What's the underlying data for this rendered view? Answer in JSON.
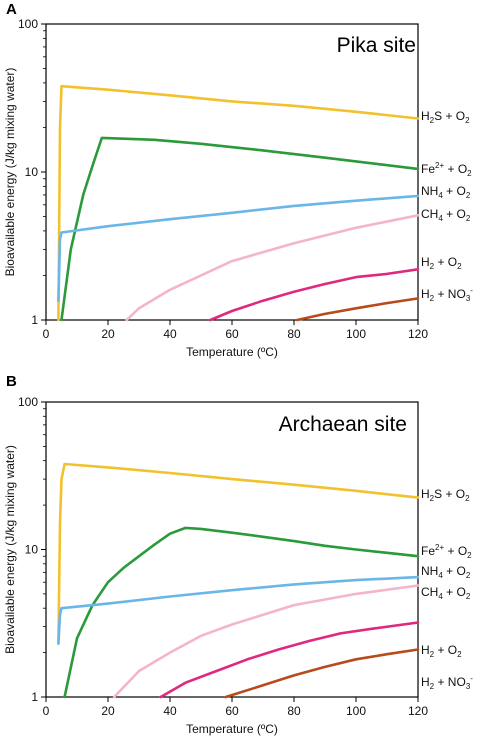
{
  "chart_data": [
    {
      "type": "line",
      "panel_label": "A",
      "title": "Pika site",
      "xlabel": "Temperature (ºC)",
      "ylabel": "Bioavailable energy (J/kg mixing water)",
      "xlim": [
        0,
        120
      ],
      "ylim": [
        1,
        100
      ],
      "yscale": "log",
      "x_ticks": [
        "0",
        "20",
        "40",
        "60",
        "80",
        "100",
        "120"
      ],
      "y_ticks": [
        "1",
        "10",
        "100"
      ],
      "grid": false,
      "series": [
        {
          "key": "h2s",
          "label_parts": [
            [
              "H"
            ],
            [
              "2",
              "sub"
            ],
            [
              "S + O"
            ],
            [
              "2",
              "sub"
            ]
          ],
          "color": "#f2c12e",
          "x": [
            4,
            4.5,
            5,
            20,
            40,
            60,
            80,
            100,
            120
          ],
          "y": [
            1,
            20,
            38,
            36,
            33,
            30,
            28,
            25.5,
            23
          ]
        },
        {
          "key": "fe",
          "label_parts": [
            [
              "Fe"
            ],
            [
              "2+",
              "sup"
            ],
            [
              " + O"
            ],
            [
              "2",
              "sub"
            ]
          ],
          "color": "#2a9a3a",
          "x": [
            5,
            8,
            12,
            15,
            18,
            25,
            35,
            50,
            70,
            90,
            120
          ],
          "y": [
            1,
            3,
            7,
            11,
            17,
            16.8,
            16.5,
            15.5,
            14,
            12.5,
            10.5
          ]
        },
        {
          "key": "nh4",
          "label_parts": [
            [
              "NH"
            ],
            [
              "4",
              "sub"
            ],
            [
              " + O"
            ],
            [
              "2",
              "sub"
            ]
          ],
          "color": "#6bb6e8",
          "x": [
            4,
            4.5,
            5,
            20,
            40,
            60,
            80,
            100,
            120
          ],
          "y": [
            1.35,
            3.5,
            3.9,
            4.3,
            4.8,
            5.3,
            5.9,
            6.4,
            6.9
          ]
        },
        {
          "key": "ch4",
          "label_parts": [
            [
              "CH"
            ],
            [
              "4",
              "sub"
            ],
            [
              " + O"
            ],
            [
              "2",
              "sub"
            ]
          ],
          "color": "#f4b5cb",
          "x": [
            26,
            30,
            40,
            50,
            60,
            80,
            100,
            120
          ],
          "y": [
            1,
            1.2,
            1.6,
            2.0,
            2.5,
            3.3,
            4.2,
            5.1
          ]
        },
        {
          "key": "h2o2",
          "label_parts": [
            [
              "H"
            ],
            [
              "2",
              "sub"
            ],
            [
              " + O"
            ],
            [
              "2",
              "sub"
            ]
          ],
          "color": "#e0297e",
          "x": [
            53,
            60,
            70,
            80,
            90,
            100,
            110,
            120
          ],
          "y": [
            1,
            1.15,
            1.35,
            1.55,
            1.75,
            1.95,
            2.05,
            2.2
          ]
        },
        {
          "key": "h2no3",
          "label_parts": [
            [
              "H"
            ],
            [
              "2",
              "sub"
            ],
            [
              " + NO"
            ],
            [
              "3",
              "sub"
            ],
            [
              "-",
              "sup"
            ]
          ],
          "color": "#b84a1c",
          "x": [
            81,
            90,
            100,
            110,
            120
          ],
          "y": [
            1,
            1.1,
            1.2,
            1.3,
            1.4
          ]
        }
      ]
    },
    {
      "type": "line",
      "panel_label": "B",
      "title": "Archaean site",
      "xlabel": "Temperature (ºC)",
      "ylabel": "Bioavailable energy (J/kg mixing water)",
      "xlim": [
        0,
        120
      ],
      "ylim": [
        1,
        100
      ],
      "yscale": "log",
      "x_ticks": [
        "0",
        "20",
        "40",
        "60",
        "80",
        "100",
        "120"
      ],
      "y_ticks": [
        "1",
        "10",
        "100"
      ],
      "grid": false,
      "series": [
        {
          "key": "h2s",
          "label_parts": [
            [
              "H"
            ],
            [
              "2",
              "sub"
            ],
            [
              "S + O"
            ],
            [
              "2",
              "sub"
            ]
          ],
          "color": "#f2c12e",
          "x": [
            4,
            4.5,
            5,
            6,
            20,
            40,
            60,
            80,
            100,
            120
          ],
          "y": [
            2.3,
            15,
            30,
            38,
            36,
            33,
            30,
            27.5,
            25,
            22.5
          ]
        },
        {
          "key": "fe",
          "label_parts": [
            [
              "Fe"
            ],
            [
              "2+",
              "sup"
            ],
            [
              " + O"
            ],
            [
              "2",
              "sub"
            ]
          ],
          "color": "#2a9a3a",
          "x": [
            6,
            10,
            15,
            20,
            25,
            30,
            35,
            40,
            45,
            50,
            60,
            70,
            80,
            90,
            100,
            110,
            120
          ],
          "y": [
            1,
            2.5,
            4.2,
            6,
            7.5,
            9,
            10.8,
            12.8,
            14,
            13.8,
            13,
            12.2,
            11.4,
            10.6,
            10,
            9.5,
            9
          ]
        },
        {
          "key": "nh4",
          "label_parts": [
            [
              "NH"
            ],
            [
              "4",
              "sub"
            ],
            [
              " + O"
            ],
            [
              "2",
              "sub"
            ]
          ],
          "color": "#6bb6e8",
          "x": [
            4,
            4.5,
            5,
            20,
            40,
            60,
            80,
            100,
            120
          ],
          "y": [
            2.3,
            3.6,
            4.0,
            4.3,
            4.8,
            5.3,
            5.8,
            6.2,
            6.5
          ]
        },
        {
          "key": "ch4",
          "label_parts": [
            [
              "CH"
            ],
            [
              "4",
              "sub"
            ],
            [
              " + O"
            ],
            [
              "2",
              "sub"
            ]
          ],
          "color": "#f4b5cb",
          "x": [
            22,
            30,
            40,
            50,
            60,
            80,
            100,
            120
          ],
          "y": [
            1,
            1.5,
            2.0,
            2.6,
            3.1,
            4.2,
            5.0,
            5.7
          ]
        },
        {
          "key": "h2o2",
          "label_parts": [
            [
              "H"
            ],
            [
              "2",
              "sub"
            ],
            [
              " + O"
            ],
            [
              "2",
              "sub"
            ]
          ],
          "color": "#e0297e",
          "x": [
            37,
            45,
            55,
            65,
            75,
            85,
            95,
            105,
            120
          ],
          "y": [
            1,
            1.25,
            1.5,
            1.8,
            2.1,
            2.4,
            2.7,
            2.9,
            3.2
          ]
        },
        {
          "key": "h2no3",
          "label_parts": [
            [
              "H"
            ],
            [
              "2",
              "sub"
            ],
            [
              " + NO"
            ],
            [
              "3",
              "sub"
            ],
            [
              "-",
              "sup"
            ]
          ],
          "color": "#b84a1c",
          "x": [
            58,
            70,
            80,
            90,
            100,
            110,
            120
          ],
          "y": [
            1,
            1.2,
            1.4,
            1.6,
            1.8,
            1.95,
            2.1
          ]
        }
      ]
    }
  ]
}
